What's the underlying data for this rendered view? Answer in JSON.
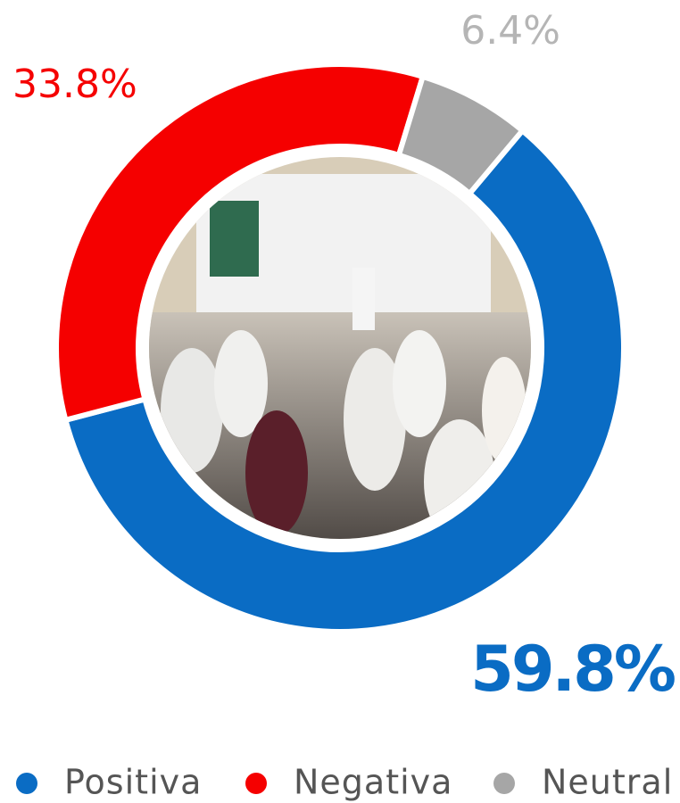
{
  "chart_data": {
    "type": "pie",
    "categories": [
      "Positiva",
      "Negativa",
      "Neutral"
    ],
    "values": [
      59.8,
      33.8,
      6.4
    ],
    "value_labels": [
      "59.8%",
      "33.8%",
      "6.4%"
    ],
    "colors": [
      "#0a6cc4",
      "#f50000",
      "#a6a6a6"
    ],
    "legend": "bottom"
  }
}
